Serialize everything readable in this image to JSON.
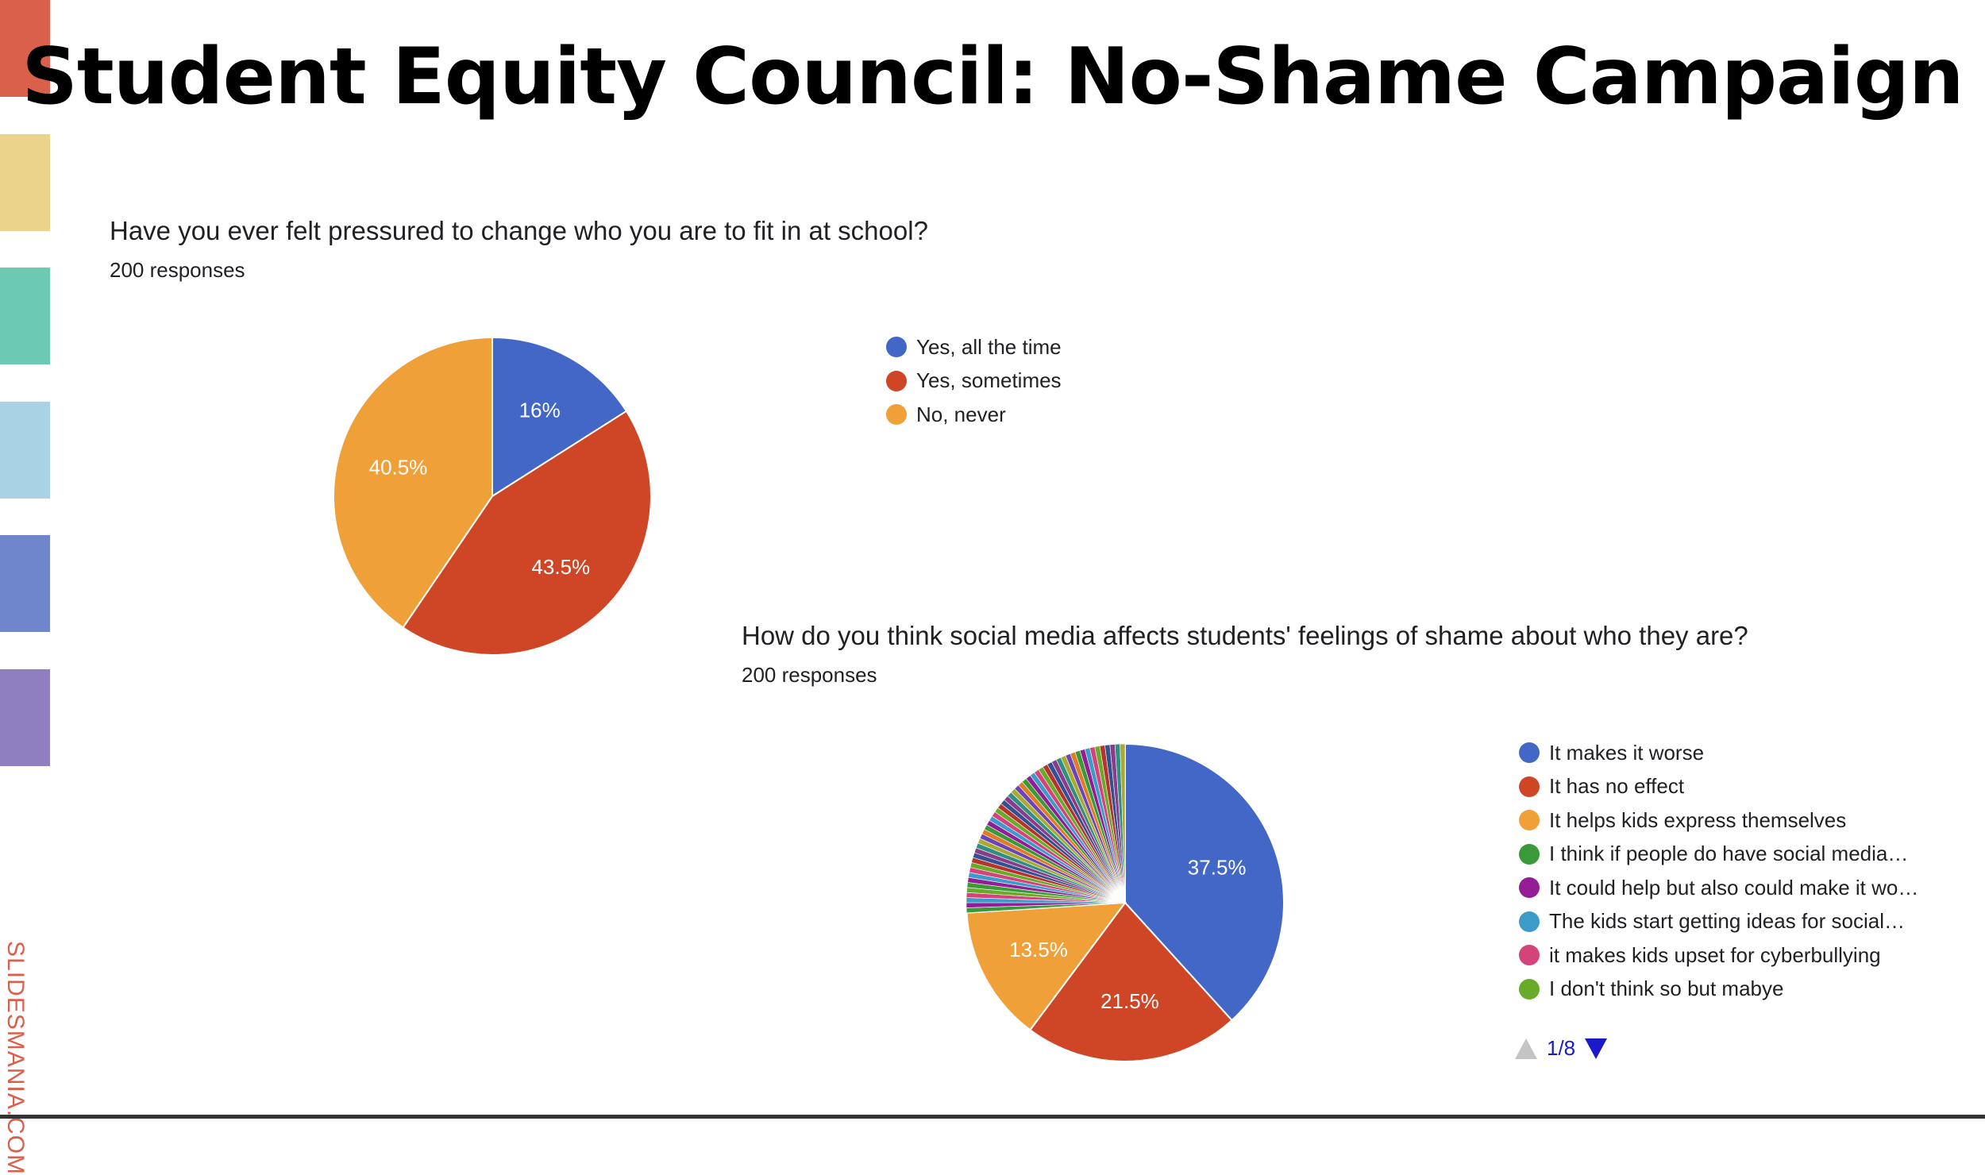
{
  "slide": {
    "title": "Student Equity Council: No-Shame Campaign",
    "brand": "SLIDESMANIA.COM",
    "stripe_colors": [
      "#d9604b",
      "#ecd38a",
      "#6ccab2",
      "#a9d3e4",
      "#6f86cc",
      "#8f7fc0"
    ]
  },
  "chart_data": [
    {
      "type": "pie",
      "title": "Have you ever felt pressured to change who you are to fit in at school?",
      "subtitle": "200 responses",
      "legend_position": "right",
      "slices": [
        {
          "label": "Yes, all the time",
          "value": 16,
          "display": "16%",
          "color": "#4267c6"
        },
        {
          "label": "Yes, sometimes",
          "value": 43.5,
          "display": "43.5%",
          "color": "#cf4626"
        },
        {
          "label": "No, never",
          "value": 40.5,
          "display": "40.5%",
          "color": "#f0a038"
        }
      ]
    },
    {
      "type": "pie",
      "title": "How do you think social media affects students' feelings of shame about who they are?",
      "subtitle": "200 responses",
      "legend_position": "right",
      "slices": [
        {
          "label": "It makes it worse",
          "value": 37.5,
          "display": "37.5%",
          "color": "#4267c6"
        },
        {
          "label": "It has no effect",
          "value": 21.5,
          "display": "21.5%",
          "color": "#cf4626"
        },
        {
          "label": "It helps kids express themselves",
          "value": 13.5,
          "display": "13.5%",
          "color": "#f0a038"
        },
        {
          "label": "I think if people do have social media…",
          "value": 0.5,
          "color": "#3a9a3a"
        },
        {
          "label": "It could help but also could make it wo…",
          "value": 0.5,
          "color": "#941c94"
        },
        {
          "label": "The kids start getting ideas for social…",
          "value": 0.5,
          "color": "#3d9bc9"
        },
        {
          "label": "it makes kids upset for cyberbullying",
          "value": 0.5,
          "color": "#d4447a"
        },
        {
          "label": "I don't think so but mabye",
          "value": 0.5,
          "color": "#6aaa2a"
        }
      ],
      "other_small_slices": {
        "count": 46,
        "value_each": 0.5,
        "colors": [
          "#3a9a3a",
          "#941c94",
          "#3d9bc9",
          "#d4447a",
          "#6aaa2a",
          "#b5342b",
          "#33518f",
          "#8a3b8a",
          "#2f8f80",
          "#a9a934",
          "#6b44b5",
          "#e07b26"
        ]
      },
      "legend_page": "1/8"
    }
  ]
}
